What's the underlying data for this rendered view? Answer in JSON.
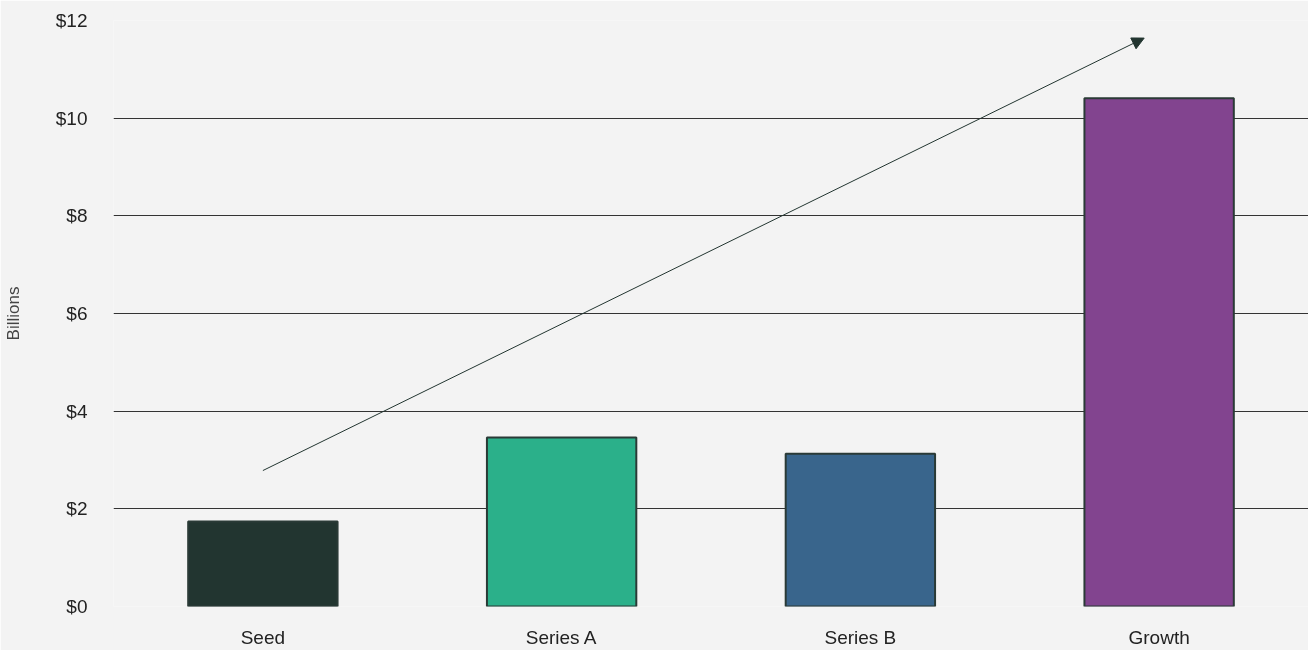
{
  "chart_data": {
    "type": "bar",
    "ylabel": "Billions",
    "categories": [
      "Seed",
      "Series A",
      "Series B",
      "Growth"
    ],
    "values": [
      1.74,
      3.46,
      3.13,
      10.41
    ],
    "colors": [
      "#223530",
      "#2bb08a",
      "#39658c",
      "#82448f"
    ],
    "ylim": [
      0,
      12
    ],
    "yticks": [
      {
        "value": 0,
        "label": "$0"
      },
      {
        "value": 2,
        "label": "$2"
      },
      {
        "value": 4,
        "label": "$4"
      },
      {
        "value": 6,
        "label": "$6"
      },
      {
        "value": 8,
        "label": "$8"
      },
      {
        "value": 10,
        "label": "$10"
      },
      {
        "value": 12,
        "label": "$12"
      }
    ],
    "grid": "y"
  }
}
